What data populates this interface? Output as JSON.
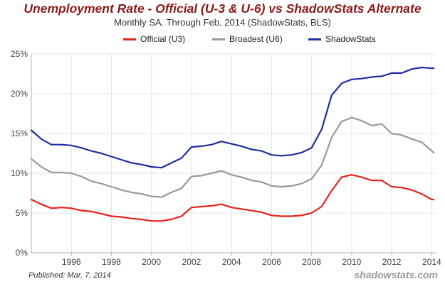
{
  "chart_data": {
    "type": "line",
    "title": "Unemployment Rate - Official (U-3 & U-6) vs ShadowStats Alternate",
    "subtitle": "Monthly SA. Through Feb. 2014  (ShadowStats, BLS)",
    "xlim": [
      1994,
      2014.2
    ],
    "ylim": [
      0,
      25
    ],
    "y_ticks": [
      0,
      5,
      10,
      15,
      20,
      25
    ],
    "y_tick_labels": [
      "0%",
      "5%",
      "10%",
      "15%",
      "20%",
      "25%"
    ],
    "x_ticks": [
      1996,
      1998,
      2000,
      2002,
      2004,
      2006,
      2008,
      2010,
      2012,
      2014
    ],
    "x_tick_labels": [
      "1996",
      "1998",
      "2000",
      "2002",
      "2004",
      "2006",
      "2008",
      "2010",
      "2012",
      "2014"
    ],
    "grid": true,
    "legend_position": "top",
    "series": [
      {
        "name": "Official (U3)",
        "color": "#e8211b",
        "x": [
          1994.0,
          1994.5,
          1995.0,
          1995.5,
          1996.0,
          1996.5,
          1997.0,
          1997.5,
          1998.0,
          1998.5,
          1999.0,
          1999.5,
          2000.0,
          2000.5,
          2001.0,
          2001.5,
          2002.0,
          2002.5,
          2003.0,
          2003.5,
          2004.0,
          2004.5,
          2005.0,
          2005.5,
          2006.0,
          2006.5,
          2007.0,
          2007.5,
          2008.0,
          2008.5,
          2009.0,
          2009.5,
          2010.0,
          2010.5,
          2011.0,
          2011.5,
          2012.0,
          2012.5,
          2013.0,
          2013.5,
          2014.0,
          2014.1
        ],
        "values": [
          6.7,
          6.1,
          5.6,
          5.7,
          5.6,
          5.3,
          5.2,
          4.9,
          4.6,
          4.5,
          4.3,
          4.2,
          4.0,
          4.0,
          4.2,
          4.6,
          5.7,
          5.8,
          5.9,
          6.1,
          5.7,
          5.5,
          5.3,
          5.1,
          4.7,
          4.6,
          4.6,
          4.7,
          5.0,
          5.8,
          7.8,
          9.5,
          9.8,
          9.5,
          9.1,
          9.1,
          8.3,
          8.2,
          7.9,
          7.4,
          6.7,
          6.7
        ]
      },
      {
        "name": "Broadest (U6)",
        "color": "#999999",
        "x": [
          1994.0,
          1994.5,
          1995.0,
          1995.5,
          1996.0,
          1996.5,
          1997.0,
          1997.5,
          1998.0,
          1998.5,
          1999.0,
          1999.5,
          2000.0,
          2000.5,
          2001.0,
          2001.5,
          2002.0,
          2002.5,
          2003.0,
          2003.5,
          2004.0,
          2004.5,
          2005.0,
          2005.5,
          2006.0,
          2006.5,
          2007.0,
          2007.5,
          2008.0,
          2008.5,
          2009.0,
          2009.5,
          2010.0,
          2010.5,
          2011.0,
          2011.5,
          2012.0,
          2012.5,
          2013.0,
          2013.5,
          2014.0,
          2014.1
        ],
        "values": [
          11.8,
          10.8,
          10.1,
          10.1,
          10.0,
          9.6,
          9.0,
          8.7,
          8.3,
          7.9,
          7.6,
          7.4,
          7.1,
          7.0,
          7.6,
          8.1,
          9.6,
          9.7,
          10.0,
          10.3,
          9.8,
          9.5,
          9.1,
          8.9,
          8.4,
          8.3,
          8.4,
          8.7,
          9.3,
          11.0,
          14.5,
          16.5,
          17.0,
          16.6,
          16.0,
          16.2,
          15.0,
          14.8,
          14.3,
          13.9,
          12.8,
          12.6
        ]
      },
      {
        "name": "ShadowStats",
        "color": "#1e2ea0",
        "x": [
          1994.0,
          1994.5,
          1995.0,
          1995.5,
          1996.0,
          1996.5,
          1997.0,
          1997.5,
          1998.0,
          1998.5,
          1999.0,
          1999.5,
          2000.0,
          2000.5,
          2001.0,
          2001.5,
          2002.0,
          2002.5,
          2003.0,
          2003.5,
          2004.0,
          2004.5,
          2005.0,
          2005.5,
          2006.0,
          2006.5,
          2007.0,
          2007.5,
          2008.0,
          2008.5,
          2009.0,
          2009.5,
          2010.0,
          2010.5,
          2011.0,
          2011.5,
          2012.0,
          2012.5,
          2013.0,
          2013.5,
          2014.0,
          2014.1
        ],
        "values": [
          15.4,
          14.3,
          13.6,
          13.6,
          13.5,
          13.2,
          12.8,
          12.5,
          12.1,
          11.7,
          11.3,
          11.1,
          10.8,
          10.7,
          11.3,
          11.9,
          13.3,
          13.4,
          13.6,
          14.0,
          13.7,
          13.4,
          13.0,
          12.8,
          12.3,
          12.2,
          12.3,
          12.6,
          13.2,
          15.5,
          19.8,
          21.3,
          21.8,
          21.9,
          22.1,
          22.2,
          22.6,
          22.6,
          23.1,
          23.3,
          23.2,
          23.2
        ]
      }
    ]
  },
  "footer": {
    "published": "Published: Mar. 7, 2014",
    "watermark": "shadowstats.com"
  }
}
